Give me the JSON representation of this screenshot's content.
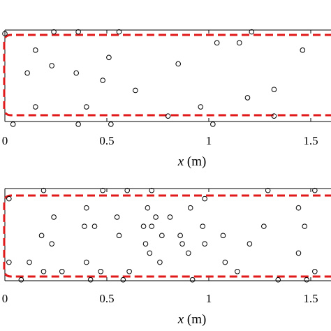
{
  "chart_data": [
    {
      "type": "scatter",
      "xlabel_var": "x",
      "xlabel_unit": "(m)",
      "xlim": [
        0,
        1.62
      ],
      "ylim": [
        0,
        1
      ],
      "x_ticks": [
        0,
        0.5,
        1,
        1.5
      ],
      "x_tick_labels": [
        "0",
        "0.5",
        "1",
        "1.5"
      ],
      "points": [
        {
          "x": 0.0,
          "y": 0.96
        },
        {
          "x": 0.24,
          "y": 0.98
        },
        {
          "x": 0.36,
          "y": 0.98
        },
        {
          "x": 0.56,
          "y": 0.98
        },
        {
          "x": 1.04,
          "y": 0.86
        },
        {
          "x": 1.21,
          "y": 0.98
        },
        {
          "x": 1.15,
          "y": 0.86
        },
        {
          "x": 0.15,
          "y": 0.78
        },
        {
          "x": 1.46,
          "y": 0.78
        },
        {
          "x": 0.51,
          "y": 0.7
        },
        {
          "x": 0.23,
          "y": 0.61
        },
        {
          "x": 0.85,
          "y": 0.63
        },
        {
          "x": 0.11,
          "y": 0.53
        },
        {
          "x": 0.35,
          "y": 0.53
        },
        {
          "x": 0.48,
          "y": 0.45
        },
        {
          "x": 0.64,
          "y": 0.34
        },
        {
          "x": 1.32,
          "y": 0.35
        },
        {
          "x": 1.19,
          "y": 0.26
        },
        {
          "x": 0.15,
          "y": 0.16
        },
        {
          "x": 0.4,
          "y": 0.16
        },
        {
          "x": 0.96,
          "y": 0.16
        },
        {
          "x": 0.8,
          "y": 0.06
        },
        {
          "x": 1.32,
          "y": 0.06
        },
        {
          "x": 0.04,
          "y": -0.03
        },
        {
          "x": 0.36,
          "y": -0.03
        },
        {
          "x": 0.52,
          "y": -0.03
        },
        {
          "x": 1.02,
          "y": -0.03
        }
      ]
    },
    {
      "type": "scatter",
      "xlabel_var": "x",
      "xlabel_unit": "(m)",
      "xlim": [
        0,
        1.62
      ],
      "ylim": [
        0,
        1
      ],
      "x_ticks": [
        0,
        0.5,
        1,
        1.5
      ],
      "x_tick_labels": [
        "0",
        "0.5",
        "1",
        "1.5"
      ],
      "points": [
        {
          "x": 0.02,
          "y": 0.89
        },
        {
          "x": 0.19,
          "y": 0.98
        },
        {
          "x": 0.48,
          "y": 0.98
        },
        {
          "x": 0.6,
          "y": 0.98
        },
        {
          "x": 0.72,
          "y": 0.98
        },
        {
          "x": 1.29,
          "y": 0.98
        },
        {
          "x": 1.52,
          "y": 0.98
        },
        {
          "x": 0.98,
          "y": 0.89
        },
        {
          "x": 0.4,
          "y": 0.79
        },
        {
          "x": 0.7,
          "y": 0.79
        },
        {
          "x": 0.91,
          "y": 0.79
        },
        {
          "x": 1.44,
          "y": 0.79
        },
        {
          "x": 0.24,
          "y": 0.69
        },
        {
          "x": 0.55,
          "y": 0.69
        },
        {
          "x": 0.74,
          "y": 0.69
        },
        {
          "x": 0.81,
          "y": 0.69
        },
        {
          "x": 0.39,
          "y": 0.59
        },
        {
          "x": 0.44,
          "y": 0.59
        },
        {
          "x": 0.68,
          "y": 0.59
        },
        {
          "x": 0.72,
          "y": 0.59
        },
        {
          "x": 0.97,
          "y": 0.59
        },
        {
          "x": 1.27,
          "y": 0.59
        },
        {
          "x": 1.47,
          "y": 0.59
        },
        {
          "x": 0.18,
          "y": 0.49
        },
        {
          "x": 0.56,
          "y": 0.49
        },
        {
          "x": 0.77,
          "y": 0.49
        },
        {
          "x": 0.86,
          "y": 0.49
        },
        {
          "x": 1.07,
          "y": 0.49
        },
        {
          "x": 0.23,
          "y": 0.4
        },
        {
          "x": 0.69,
          "y": 0.4
        },
        {
          "x": 0.87,
          "y": 0.4
        },
        {
          "x": 0.98,
          "y": 0.4
        },
        {
          "x": 1.2,
          "y": 0.4
        },
        {
          "x": 0.71,
          "y": 0.3
        },
        {
          "x": 0.9,
          "y": 0.3
        },
        {
          "x": 1.44,
          "y": 0.3
        },
        {
          "x": 0.02,
          "y": 0.2
        },
        {
          "x": 0.12,
          "y": 0.2
        },
        {
          "x": 0.4,
          "y": 0.2
        },
        {
          "x": 0.76,
          "y": 0.2
        },
        {
          "x": 1.08,
          "y": 0.2
        },
        {
          "x": 0.19,
          "y": 0.1
        },
        {
          "x": 0.28,
          "y": 0.1
        },
        {
          "x": 0.47,
          "y": 0.1
        },
        {
          "x": 0.61,
          "y": 0.1
        },
        {
          "x": 1.14,
          "y": 0.1
        },
        {
          "x": 1.52,
          "y": 0.1
        },
        {
          "x": 0.08,
          "y": 0.01
        },
        {
          "x": 0.42,
          "y": 0.01
        },
        {
          "x": 0.58,
          "y": 0.01
        },
        {
          "x": 0.92,
          "y": 0.01
        },
        {
          "x": 1.34,
          "y": 0.01
        },
        {
          "x": 1.48,
          "y": 0.01
        }
      ]
    }
  ],
  "colors": {
    "boundary": "#e01a1a",
    "axes": "#000000",
    "marker": "#000000",
    "background": "#ffffff"
  }
}
